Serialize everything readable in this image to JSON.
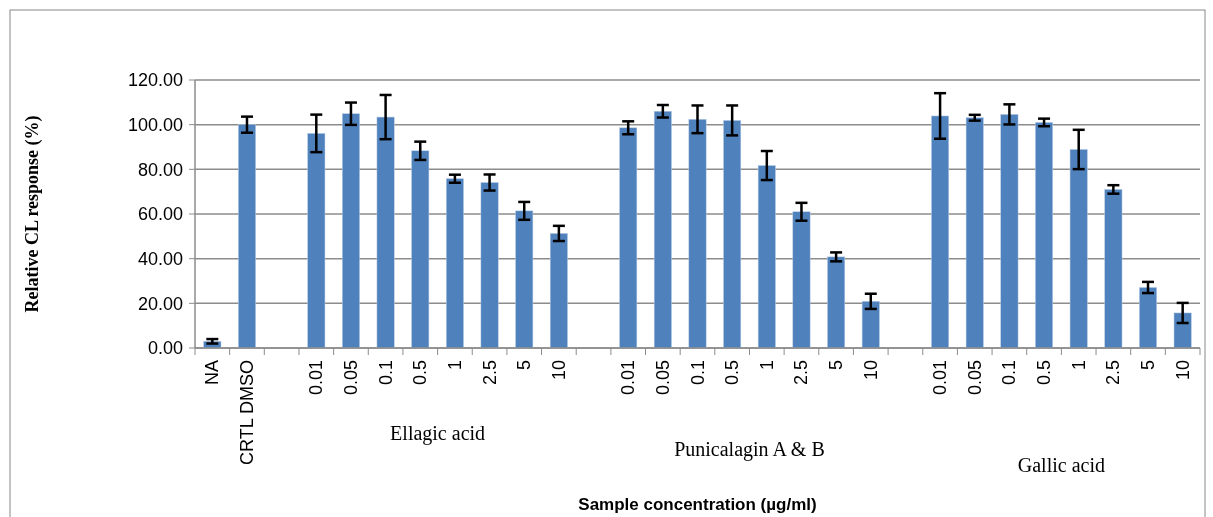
{
  "chart_data": {
    "type": "bar",
    "xlabel": "Sample concentration (µg/ml)",
    "ylabel": "Relative CL response (%)",
    "categories": [
      "NA",
      "CRTL DMSO",
      null,
      "0.01",
      "0.05",
      "0.1",
      "0.5",
      "1",
      "2.5",
      "5",
      "10",
      null,
      "0.01",
      "0.05",
      "0.1",
      "0.5",
      "1",
      "2.5",
      "5",
      "10",
      null,
      "0.01",
      "0.05",
      "0.1",
      "0.5",
      "1",
      "2.5",
      "5",
      "10"
    ],
    "series": [
      {
        "color": "#4f81bd",
        "values": [
          3,
          100,
          null,
          96.1,
          104.9,
          103.4,
          88.3,
          75.8,
          74.1,
          61.4,
          51.3,
          null,
          98.6,
          106,
          102.4,
          101.9,
          81.7,
          61,
          40.8,
          20.9,
          null,
          103.9,
          103.1,
          104.6,
          101,
          88.9,
          71,
          27.1,
          15.7
        ],
        "errors": [
          1,
          3.6,
          null,
          8.4,
          5,
          9.9,
          4.1,
          1.8,
          3.6,
          4,
          3.4,
          null,
          2.9,
          2.8,
          6.2,
          6.7,
          6.5,
          4,
          2,
          3.4,
          null,
          10.2,
          1.3,
          4.5,
          1.7,
          8.8,
          1.9,
          2.5,
          4.5
        ]
      }
    ],
    "ylim": [
      0,
      120
    ],
    "yticks": [
      {
        "value": 0,
        "label": "0.00"
      },
      {
        "value": 20,
        "label": "20.00"
      },
      {
        "value": 40,
        "label": "40.00"
      },
      {
        "value": 60,
        "label": "60.00"
      },
      {
        "value": 80,
        "label": "80.00"
      },
      {
        "value": 100,
        "label": "100.00"
      },
      {
        "value": 120,
        "label": "120.00"
      }
    ],
    "grid": "y",
    "annotations": [
      "Ellagic acid",
      "Punicalagin A & B",
      "Gallic acid"
    ]
  }
}
